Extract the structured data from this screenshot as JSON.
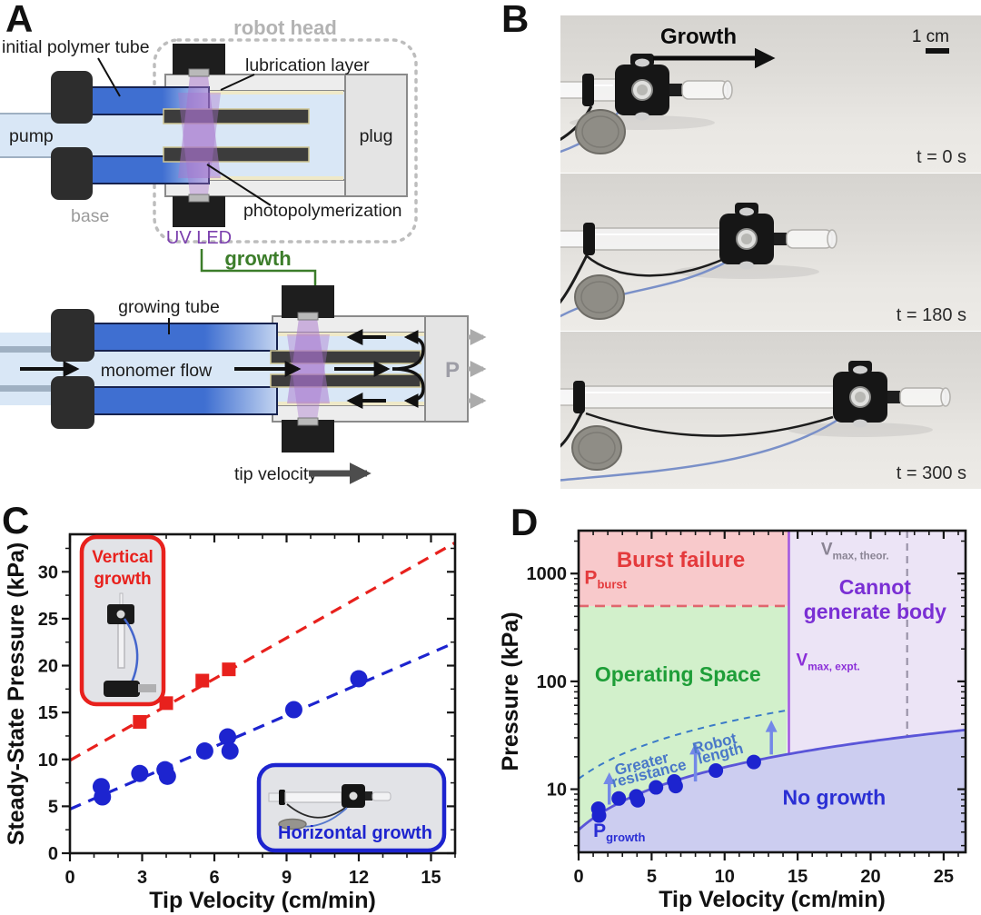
{
  "panels": {
    "a_label": "A",
    "b_label": "B",
    "c_label": "C",
    "d_label": "D"
  },
  "colors": {
    "accent_red": "#e8211d",
    "accent_blue": "#1d24cf",
    "uv_purple": "#a874cc",
    "tube_blue": "#3f6fd1",
    "monomer_blue": "#d9e7f6",
    "growth_green": "#3c7d2a",
    "region_pink": "#f8c9cb",
    "region_green": "#d2f0cb",
    "region_lavender": "#ece4f6",
    "region_periwinkle": "#cccdf0"
  },
  "panelA": {
    "labels": {
      "robot_head": "robot head",
      "initial_polymer_tube": "initial polymer tube",
      "lubrication_layer": "lubrication layer",
      "pump": "pump",
      "plug": "plug",
      "base": "base",
      "uv_led": "UV LED",
      "photopolymerization": "photopolymerization",
      "growth": "growth",
      "growing_tube": "growing tube",
      "monomer_flow": "monomer flow",
      "pressure": "P",
      "tip_velocity": "tip velocity"
    }
  },
  "panelB": {
    "growth_label": "Growth",
    "scale_bar_label": "1 cm",
    "frames": [
      {
        "time": "t = 0 s"
      },
      {
        "time": "t = 180 s"
      },
      {
        "time": "t = 300 s"
      }
    ]
  },
  "chart_data": [
    {
      "id": "panelC",
      "type": "scatter",
      "xlabel": "Tip Velocity (cm/min)",
      "ylabel": "Steady-State Pressure (kPa)",
      "xlim": [
        0,
        16
      ],
      "ylim": [
        0,
        34
      ],
      "xticks": [
        0,
        3,
        6,
        9,
        12,
        15
      ],
      "yticks": [
        0,
        5,
        10,
        15,
        20,
        25,
        30
      ],
      "xminor_step": 1,
      "yminor_step": 2.5,
      "grid": false,
      "legend": "none",
      "series": [
        {
          "name": "Vertical growth",
          "marker": "square",
          "color": "#e8211d",
          "trend": {
            "style": "dashed",
            "intercept": 9.9,
            "slope": 1.45
          },
          "points": [
            [
              2.9,
              14.0
            ],
            [
              4.0,
              16.0
            ],
            [
              5.5,
              18.4
            ],
            [
              6.6,
              19.6
            ]
          ]
        },
        {
          "name": "Horizontal growth",
          "marker": "circle",
          "color": "#1d24cf",
          "trend": {
            "style": "dashed",
            "intercept": 4.7,
            "slope": 1.11
          },
          "points": [
            [
              1.3,
              7.1
            ],
            [
              1.35,
              6.0
            ],
            [
              2.9,
              8.5
            ],
            [
              3.95,
              8.9
            ],
            [
              4.05,
              8.2
            ],
            [
              5.6,
              10.9
            ],
            [
              6.55,
              12.4
            ],
            [
              6.65,
              10.9
            ],
            [
              9.3,
              15.3
            ],
            [
              12.0,
              18.6
            ]
          ]
        }
      ],
      "insets": [
        {
          "lines": [
            "Vertical",
            "growth"
          ],
          "color": "#e8211d",
          "position": "top-left"
        },
        {
          "lines": [
            "Horizontal growth"
          ],
          "color": "#1d24cf",
          "position": "bottom-right"
        }
      ]
    },
    {
      "id": "panelD",
      "type": "scatter",
      "xlabel": "Tip Velocity (cm/min)",
      "ylabel": "Pressure (kPa)",
      "xlim": [
        0,
        26.5
      ],
      "ylim": [
        2.6,
        2500
      ],
      "yscale": "log",
      "xticks": [
        0,
        5,
        10,
        15,
        20,
        25
      ],
      "yticks": [
        10,
        100,
        1000
      ],
      "xminor_step": 1,
      "grid": false,
      "regions": [
        {
          "name": "burst_failure",
          "label": "Burst failure",
          "fill": "#f8c9cb"
        },
        {
          "name": "operating_space",
          "label": "Operating Space",
          "fill": "#d2f0cb"
        },
        {
          "name": "cannot_generate_body",
          "label": "Cannot generate body",
          "fill": "#ece4f6"
        },
        {
          "name": "no_growth",
          "label": "No growth",
          "fill": "#cccdf0"
        }
      ],
      "boundaries": {
        "p_burst": {
          "value": 500,
          "color": "#e0666e",
          "style": "dashed"
        },
        "p_growth": {
          "intercept": 4.2,
          "slope": 1.18,
          "color": "#5a55d8",
          "style": "solid"
        },
        "v_max_expt": {
          "value": 14.4,
          "color": "#a35ae0",
          "style": "solid"
        },
        "v_max_theor": {
          "value": 22.5,
          "color": "#9a93a8",
          "style": "dashed"
        },
        "resistance": {
          "intercept": 12.5,
          "slope": 2.9,
          "xmax": 14.4,
          "color": "#3a7ac8",
          "style": "dashed"
        }
      },
      "annotations": [
        {
          "text": "Burst failure",
          "x": 7,
          "y": 1150,
          "color": "#e43a3c",
          "size": 24
        },
        {
          "text": "Cannot",
          "x": 20.3,
          "y": 640,
          "color": "#7a2fd4",
          "size": 23
        },
        {
          "text": "generate body",
          "x": 20.3,
          "y": 380,
          "color": "#7a2fd4",
          "size": 23
        },
        {
          "text": "Operating Space",
          "x": 6.8,
          "y": 100,
          "color": "#1e9e38",
          "size": 23
        },
        {
          "text": "No growth",
          "x": 17.5,
          "y": 7.2,
          "color": "#2b2fd4",
          "size": 23
        },
        {
          "text": "P",
          "sub": "burst",
          "x": 0.4,
          "y": 800,
          "color": "#e43a3c",
          "size": 21,
          "anchor": "start"
        },
        {
          "text": "P",
          "sub": "growth",
          "x": 1.0,
          "y": 3.6,
          "color": "#2b2fd4",
          "size": 21,
          "anchor": "start"
        },
        {
          "text": "V",
          "sub": "max, expt.",
          "x": 14.9,
          "y": 140,
          "color": "#8b2fd8",
          "size": 19,
          "anchor": "start"
        },
        {
          "text": "V",
          "sub": "max, theor.",
          "x": 16.6,
          "y": 1500,
          "color": "#8a8494",
          "size": 19,
          "anchor": "start"
        },
        {
          "text": "Greater",
          "x": 4.4,
          "y": 15.5,
          "color": "#4a78c8",
          "size": 17,
          "rotate": -14
        },
        {
          "text": "resistance",
          "x": 4.9,
          "y": 12.6,
          "color": "#4a78c8",
          "size": 17,
          "rotate": -14
        },
        {
          "text": "Robot",
          "x": 9.4,
          "y": 24,
          "color": "#4a78c8",
          "size": 17,
          "rotate": -14
        },
        {
          "text": "length",
          "x": 9.8,
          "y": 19.3,
          "color": "#4a78c8",
          "size": 17,
          "rotate": -14
        }
      ],
      "arrows": [
        {
          "x": 2.1,
          "y1": 7.2,
          "y2": 13.8
        },
        {
          "x": 8.0,
          "y1": 11.8,
          "y2": 26
        },
        {
          "x": 13.2,
          "y1": 21,
          "y2": 42
        }
      ],
      "arrow_color": "#7388e8",
      "series": [
        {
          "name": "Horizontal growth",
          "marker": "circle",
          "color": "#1d24cf",
          "points": [
            [
              1.35,
              6.6
            ],
            [
              1.4,
              5.7
            ],
            [
              2.75,
              8.2
            ],
            [
              3.95,
              8.6
            ],
            [
              4.05,
              7.9
            ],
            [
              5.3,
              10.4
            ],
            [
              6.55,
              11.8
            ],
            [
              6.65,
              10.7
            ],
            [
              9.4,
              14.9
            ],
            [
              12.0,
              17.9
            ]
          ]
        }
      ]
    }
  ]
}
